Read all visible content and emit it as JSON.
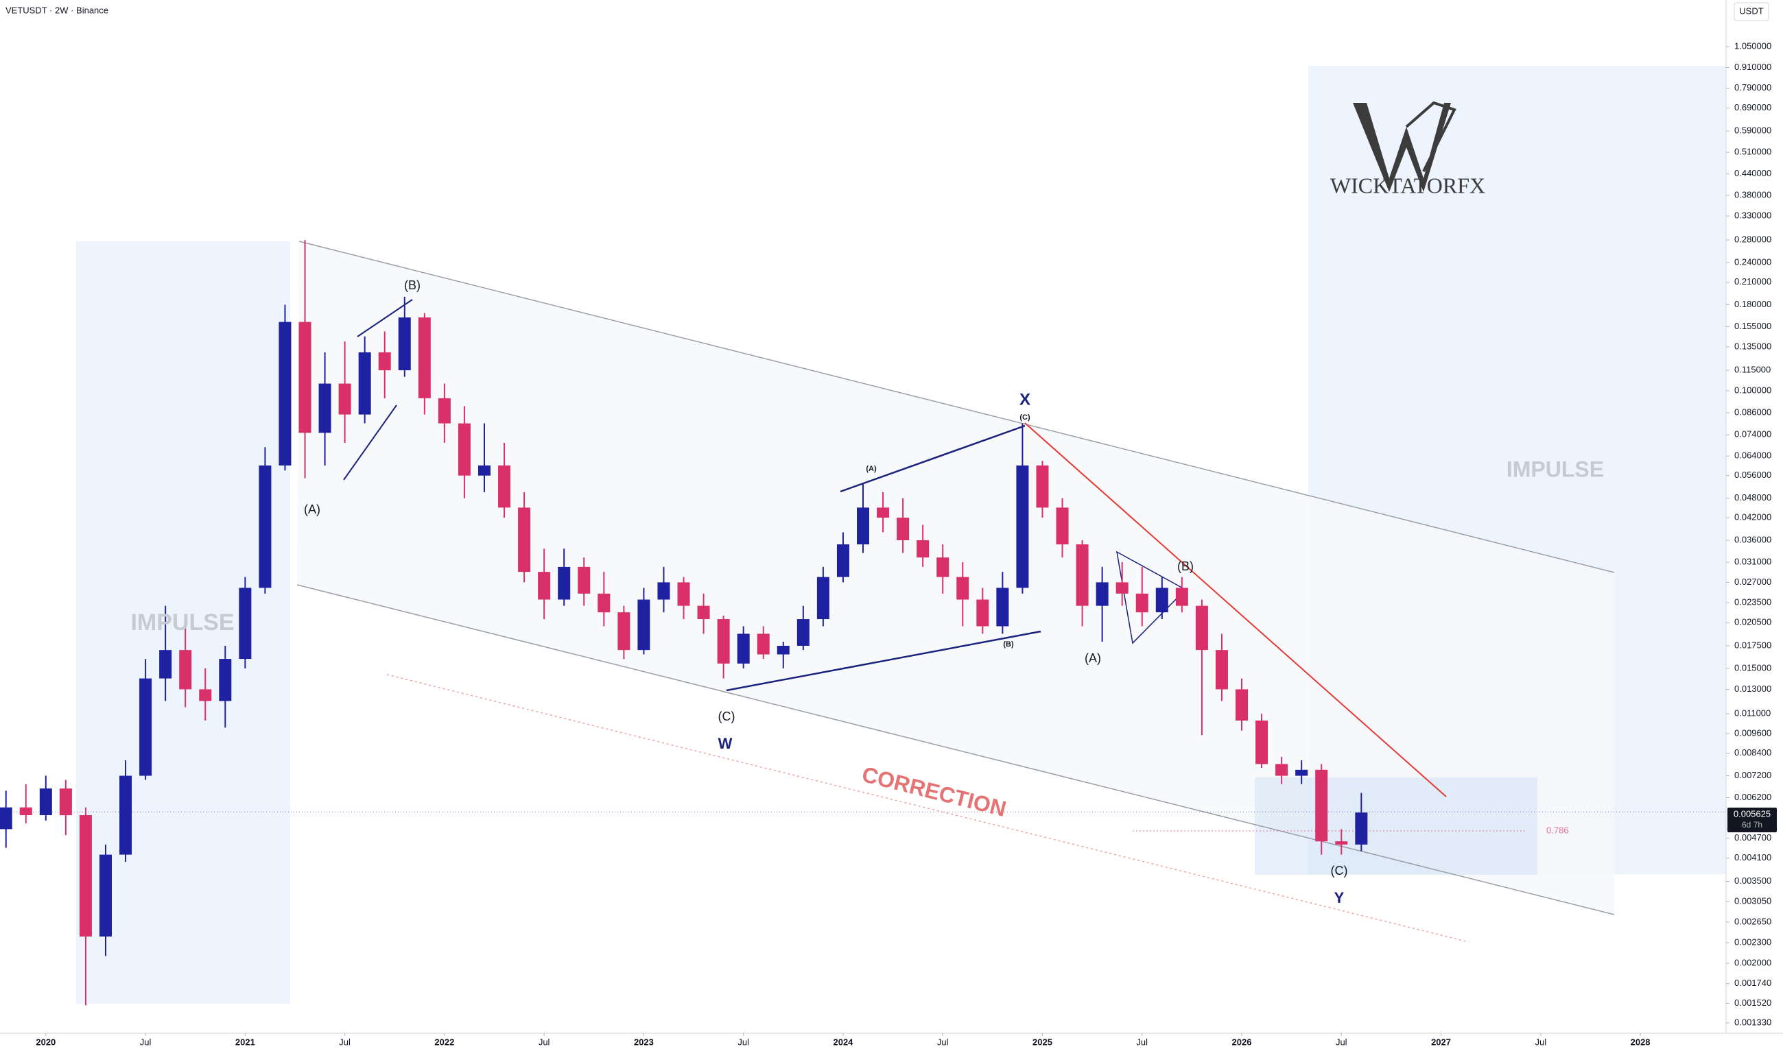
{
  "chart_data": {
    "type": "candlestick",
    "title": "VETUSDT · 2W · Binance",
    "currency": "USDT",
    "log_scale": true,
    "grid": false,
    "up_color": "#1e22a0",
    "down_color": "#d9306a",
    "xlim": [
      2019.77,
      2028.43
    ],
    "ylim": [
      0.00124,
      1.444
    ],
    "xticks": [
      2020,
      {
        "value": 2020.5,
        "label": "Jul"
      },
      2021,
      {
        "value": 2021.5,
        "label": "Jul"
      },
      2022,
      {
        "value": 2022.5,
        "label": "Jul"
      },
      2023,
      {
        "value": 2023.5,
        "label": "Jul"
      },
      2024,
      {
        "value": 2024.5,
        "label": "Jul"
      },
      2025,
      {
        "value": 2025.5,
        "label": "Jul"
      },
      2026,
      {
        "value": 2026.5,
        "label": "Jul"
      },
      2027,
      {
        "value": 2027.5,
        "label": "Jul"
      },
      2028
    ],
    "yticks": [
      {
        "value": 1.05,
        "label": "1.050000"
      },
      {
        "value": 0.91,
        "label": "0.910000"
      },
      {
        "value": 0.79,
        "label": "0.790000"
      },
      {
        "value": 0.69,
        "label": "0.690000"
      },
      {
        "value": 0.59,
        "label": "0.590000"
      },
      {
        "value": 0.51,
        "label": "0.510000"
      },
      {
        "value": 0.44,
        "label": "0.440000"
      },
      {
        "value": 0.38,
        "label": "0.380000"
      },
      {
        "value": 0.33,
        "label": "0.330000"
      },
      {
        "value": 0.28,
        "label": "0.280000"
      },
      {
        "value": 0.24,
        "label": "0.240000"
      },
      {
        "value": 0.21,
        "label": "0.210000"
      },
      {
        "value": 0.18,
        "label": "0.180000"
      },
      {
        "value": 0.155,
        "label": "0.155000"
      },
      {
        "value": 0.135,
        "label": "0.135000"
      },
      {
        "value": 0.115,
        "label": "0.115000"
      },
      {
        "value": 0.1,
        "label": "0.100000"
      },
      {
        "value": 0.086,
        "label": "0.086000"
      },
      {
        "value": 0.074,
        "label": "0.074000"
      },
      {
        "value": 0.064,
        "label": "0.064000"
      },
      {
        "value": 0.056,
        "label": "0.056000"
      },
      {
        "value": 0.048,
        "label": "0.048000"
      },
      {
        "value": 0.042,
        "label": "0.042000"
      },
      {
        "value": 0.036,
        "label": "0.036000"
      },
      {
        "value": 0.031,
        "label": "0.031000"
      },
      {
        "value": 0.027,
        "label": "0.027000"
      },
      {
        "value": 0.0235,
        "label": "0.023500"
      },
      {
        "value": 0.0205,
        "label": "0.020500"
      },
      {
        "value": 0.0175,
        "label": "0.017500"
      },
      {
        "value": 0.015,
        "label": "0.015000"
      },
      {
        "value": 0.013,
        "label": "0.013000"
      },
      {
        "value": 0.011,
        "label": "0.011000"
      },
      {
        "value": 0.0096,
        "label": "0.009600"
      },
      {
        "value": 0.0084,
        "label": "0.008400"
      },
      {
        "value": 0.0072,
        "label": "0.007200"
      },
      {
        "value": 0.0062,
        "label": "0.006200"
      },
      {
        "value": 0.0047,
        "label": "0.004700"
      },
      {
        "value": 0.0041,
        "label": "0.004100"
      },
      {
        "value": 0.0035,
        "label": "0.003500"
      },
      {
        "value": 0.00305,
        "label": "0.003050"
      },
      {
        "value": 0.00265,
        "label": "0.002650"
      },
      {
        "value": 0.0023,
        "label": "0.002300"
      },
      {
        "value": 0.002,
        "label": "0.002000"
      },
      {
        "value": 0.00174,
        "label": "0.001740"
      },
      {
        "value": 0.00152,
        "label": "0.001520"
      },
      {
        "value": 0.00133,
        "label": "0.001330"
      }
    ],
    "x": [
      2019.8,
      2019.9,
      2020.0,
      2020.1,
      2020.2,
      2020.3,
      2020.4,
      2020.5,
      2020.6,
      2020.7,
      2020.8,
      2020.9,
      2021.0,
      2021.1,
      2021.2,
      2021.3,
      2021.4,
      2021.5,
      2021.6,
      2021.7,
      2021.8,
      2021.9,
      2022.0,
      2022.1,
      2022.2,
      2022.3,
      2022.4,
      2022.5,
      2022.6,
      2022.7,
      2022.8,
      2022.9,
      2023.0,
      2023.1,
      2023.2,
      2023.3,
      2023.4,
      2023.5,
      2023.6,
      2023.7,
      2023.8,
      2023.9,
      2024.0,
      2024.1,
      2024.2,
      2024.3,
      2024.4,
      2024.5,
      2024.6,
      2024.7,
      2024.8,
      2024.9,
      2025.0,
      2025.1,
      2025.2,
      2025.3,
      2025.4,
      2025.5,
      2025.6,
      2025.7,
      2025.8,
      2025.9,
      2026.0,
      2026.1,
      2026.2,
      2026.3,
      2026.4,
      2026.5,
      2026.6
    ],
    "open": [
      0.005,
      0.0058,
      0.0055,
      0.0066,
      0.0055,
      0.0024,
      0.0042,
      0.0072,
      0.014,
      0.017,
      0.013,
      0.012,
      0.016,
      0.026,
      0.06,
      0.16,
      0.075,
      0.105,
      0.085,
      0.13,
      0.115,
      0.165,
      0.095,
      0.08,
      0.056,
      0.06,
      0.045,
      0.029,
      0.024,
      0.03,
      0.025,
      0.022,
      0.017,
      0.024,
      0.027,
      0.023,
      0.021,
      0.0155,
      0.019,
      0.0165,
      0.0175,
      0.021,
      0.028,
      0.035,
      0.045,
      0.042,
      0.036,
      0.032,
      0.028,
      0.024,
      0.02,
      0.026,
      0.06,
      0.045,
      0.035,
      0.023,
      0.027,
      0.025,
      0.022,
      0.026,
      0.023,
      0.017,
      0.013,
      0.0105,
      0.0078,
      0.0072,
      0.0075,
      0.0046,
      0.0045
    ],
    "high": [
      0.0065,
      0.0068,
      0.0072,
      0.007,
      0.0058,
      0.0045,
      0.008,
      0.016,
      0.023,
      0.02,
      0.015,
      0.0175,
      0.028,
      0.068,
      0.18,
      0.28,
      0.13,
      0.14,
      0.145,
      0.15,
      0.19,
      0.17,
      0.105,
      0.09,
      0.08,
      0.07,
      0.05,
      0.034,
      0.034,
      0.032,
      0.029,
      0.023,
      0.026,
      0.03,
      0.028,
      0.025,
      0.0215,
      0.02,
      0.02,
      0.018,
      0.023,
      0.03,
      0.038,
      0.053,
      0.05,
      0.048,
      0.04,
      0.035,
      0.031,
      0.026,
      0.029,
      0.08,
      0.062,
      0.048,
      0.036,
      0.03,
      0.031,
      0.03,
      0.028,
      0.028,
      0.024,
      0.019,
      0.014,
      0.011,
      0.0082,
      0.008,
      0.0078,
      0.005,
      0.0064
    ],
    "low": [
      0.0044,
      0.0052,
      0.0053,
      0.0048,
      0.0015,
      0.0021,
      0.004,
      0.007,
      0.012,
      0.0115,
      0.0105,
      0.01,
      0.015,
      0.025,
      0.058,
      0.055,
      0.06,
      0.07,
      0.08,
      0.095,
      0.11,
      0.085,
      0.07,
      0.048,
      0.05,
      0.042,
      0.027,
      0.021,
      0.023,
      0.023,
      0.02,
      0.016,
      0.0165,
      0.022,
      0.021,
      0.019,
      0.014,
      0.015,
      0.016,
      0.015,
      0.017,
      0.02,
      0.027,
      0.033,
      0.038,
      0.033,
      0.03,
      0.025,
      0.02,
      0.019,
      0.019,
      0.025,
      0.042,
      0.032,
      0.02,
      0.018,
      0.023,
      0.02,
      0.021,
      0.022,
      0.0095,
      0.012,
      0.0098,
      0.0076,
      0.0068,
      0.0068,
      0.0042,
      0.0042,
      0.0043
    ],
    "close": [
      0.0058,
      0.0055,
      0.0066,
      0.0055,
      0.0024,
      0.0042,
      0.0072,
      0.014,
      0.017,
      0.013,
      0.012,
      0.016,
      0.026,
      0.06,
      0.16,
      0.075,
      0.105,
      0.085,
      0.13,
      0.115,
      0.165,
      0.095,
      0.08,
      0.056,
      0.06,
      0.045,
      0.029,
      0.024,
      0.03,
      0.025,
      0.022,
      0.017,
      0.024,
      0.027,
      0.023,
      0.021,
      0.0155,
      0.019,
      0.0165,
      0.0175,
      0.021,
      0.028,
      0.035,
      0.045,
      0.042,
      0.036,
      0.032,
      0.028,
      0.024,
      0.02,
      0.026,
      0.06,
      0.045,
      0.035,
      0.023,
      0.027,
      0.025,
      0.022,
      0.026,
      0.023,
      0.017,
      0.013,
      0.0105,
      0.0078,
      0.0072,
      0.0075,
      0.0046,
      0.0045,
      0.0056
    ],
    "last_price": 0.005625,
    "countdown": "6d 7h",
    "fib_label": 0.786,
    "logo": "WICKTATORFX",
    "annotations": [
      "(A)",
      "(B)",
      "(C)",
      "W",
      "(A)",
      "X",
      "(C)",
      "(B)",
      "(A)",
      "(B)",
      "(C)",
      "Y",
      "IMPULSE",
      "IMPULSE",
      "CORRECTION"
    ]
  }
}
